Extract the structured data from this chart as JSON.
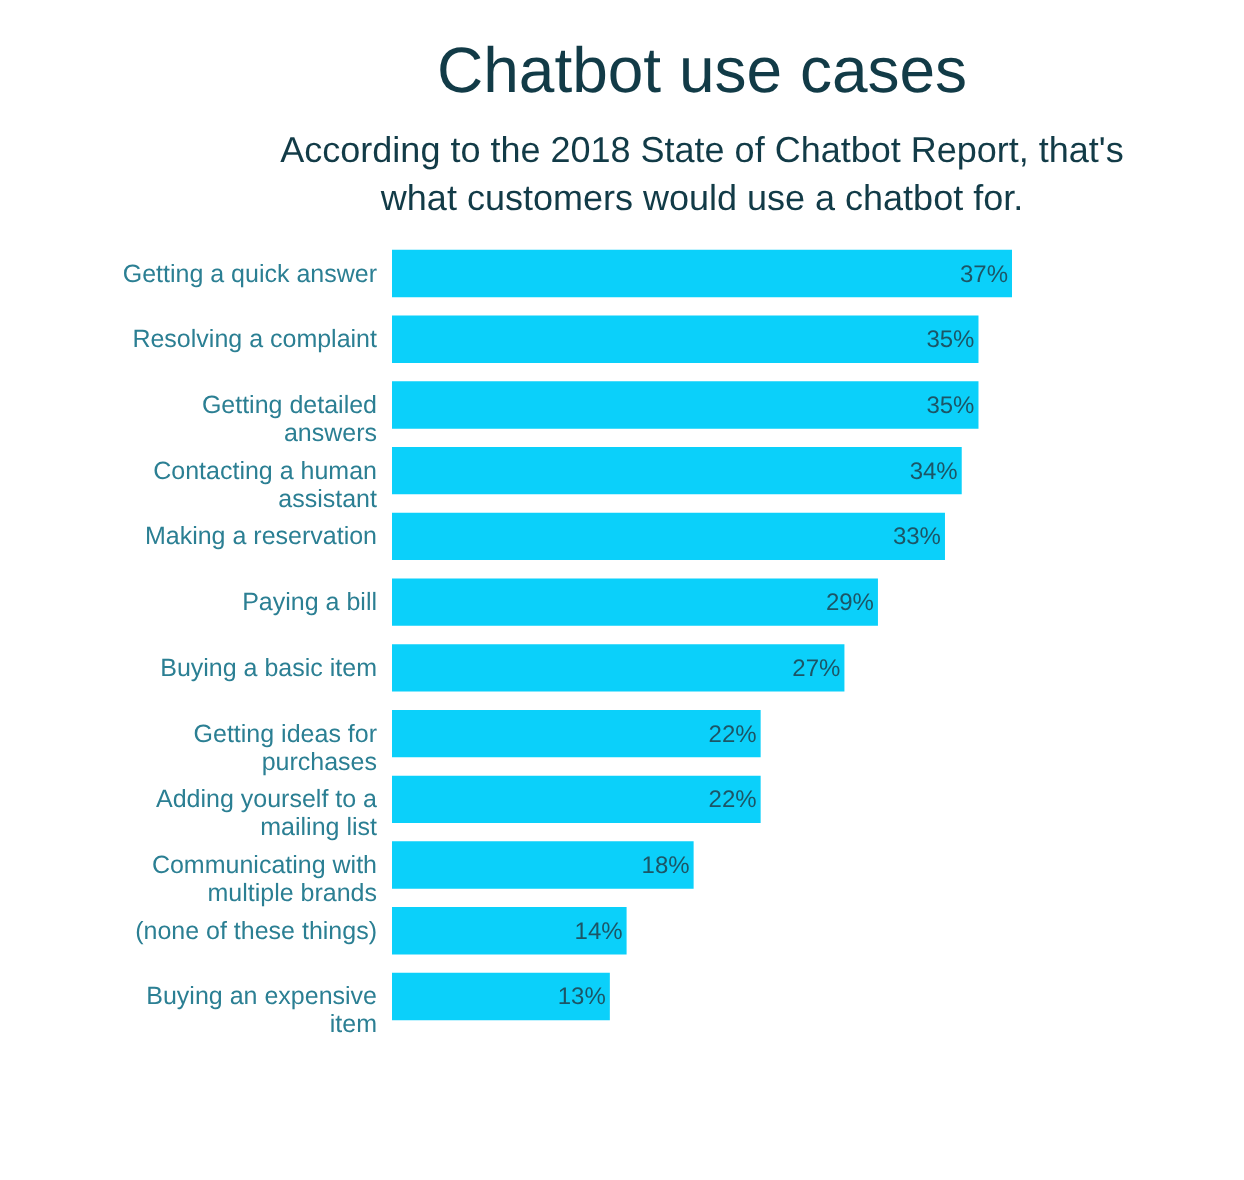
{
  "chart_data": {
    "type": "bar",
    "orientation": "horizontal",
    "title": "Chatbot use cases",
    "subtitle": "According to the 2018 State of Chatbot Report, that's what customers would use a chatbot for.",
    "categories": [
      "Getting a quick answer",
      "Resolving a complaint",
      "Getting detailed answers",
      "Contacting a human assistant",
      "Making a reservation",
      "Paying a bill",
      "Buying a basic item",
      "Getting ideas for purchases",
      "Adding yourself to a mailing list",
      "Communicating with multiple brands",
      "(none of these things)",
      "Buying an expensive item"
    ],
    "values": [
      37,
      35,
      35,
      34,
      33,
      29,
      27,
      22,
      22,
      18,
      14,
      13
    ],
    "value_labels": [
      "37%",
      "35%",
      "35%",
      "34%",
      "33%",
      "29%",
      "27%",
      "22%",
      "22%",
      "18%",
      "14%",
      "13%"
    ],
    "color": "#0bd0fa"
  }
}
